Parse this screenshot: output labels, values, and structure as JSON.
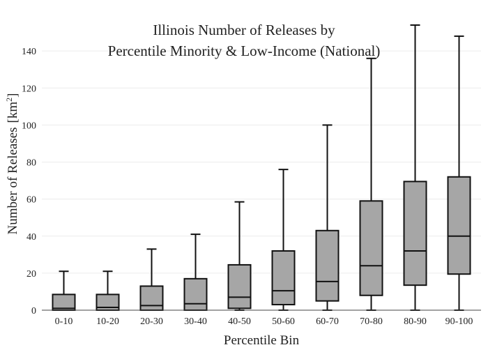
{
  "chart_data": {
    "type": "box",
    "title_lines": [
      "Illinois Number of Releases by",
      "Percentile Minority & Low-Income (National)"
    ],
    "xlabel": "Percentile Bin",
    "ylabel_main": "Number of Releases",
    "ylabel_unit": "[km",
    "ylabel_sup": "2",
    "ylabel_close": "]",
    "ylim": [
      0,
      157
    ],
    "yticks": [
      0,
      20,
      40,
      60,
      80,
      100,
      120,
      140
    ],
    "grid": true,
    "box_color": "#a6a6a6",
    "categories": [
      "0-10",
      "10-20",
      "20-30",
      "30-40",
      "40-50",
      "50-60",
      "60-70",
      "70-80",
      "80-90",
      "90-100"
    ],
    "boxes": [
      {
        "min": 0,
        "q1": 0,
        "median": 1,
        "q3": 8.5,
        "max": 21
      },
      {
        "min": 0,
        "q1": 0,
        "median": 1.5,
        "q3": 8.5,
        "max": 21
      },
      {
        "min": 0,
        "q1": 0,
        "median": 2.5,
        "q3": 13,
        "max": 33
      },
      {
        "min": 0,
        "q1": 0,
        "median": 3.5,
        "q3": 17,
        "max": 41
      },
      {
        "min": 0,
        "q1": 1,
        "median": 7,
        "q3": 24.5,
        "max": 58.5
      },
      {
        "min": 0,
        "q1": 3,
        "median": 10.5,
        "q3": 32,
        "max": 76
      },
      {
        "min": 0,
        "q1": 5,
        "median": 15.5,
        "q3": 43,
        "max": 100
      },
      {
        "min": 0,
        "q1": 8,
        "median": 24,
        "q3": 59,
        "max": 136
      },
      {
        "min": 0,
        "q1": 13.5,
        "median": 32,
        "q3": 69.5,
        "max": 154
      },
      {
        "min": 0,
        "q1": 19.5,
        "median": 40,
        "q3": 72,
        "max": 148
      }
    ]
  }
}
